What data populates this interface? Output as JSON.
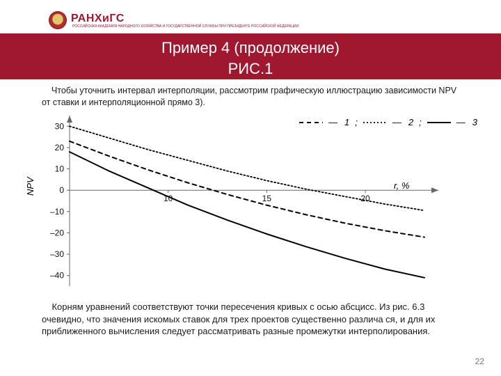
{
  "logo": {
    "main": "РАНХиГС",
    "subtitle": "РОССИЙСКАЯ АКАДЕМИЯ НАРОДНОГО ХОЗЯЙСТВА И ГОСУДАРСТВЕННОЙ СЛУЖБЫ ПРИ ПРЕЗИДЕНТЕ РОССИЙСКОЙ ФЕДЕРАЦИИ"
  },
  "title_line1": "Пример 4 (продолжение)",
  "title_line2": "РИС.1",
  "intro_text": "Чтобы уточнить интервал интерполяции, рассмотрим графическую иллюстрацию зависимости NPV от ставки и интерполяционной прямо            3).",
  "outro_text": "Корням уравнений соответствуют точки пересечения кривых с осью абсцисс. Из рис. 6.3 очевидно, что значения искомых ставок для трех проектов существенно различа    ся, и для их приближенного вычисления следует рассматривать разные промежутки интерполирования.",
  "page_number": "22",
  "chart": {
    "type": "line",
    "x_label": "r, %",
    "y_label": "NPV",
    "x_domain": [
      5,
      23
    ],
    "y_domain": [
      -45,
      35
    ],
    "y_ticks": [
      -40,
      -30,
      -20,
      -10,
      0,
      10,
      20,
      30
    ],
    "x_ticks": [
      10,
      15,
      20
    ],
    "axis_color": "#666666",
    "axis_width": 1,
    "grid": false,
    "background": "#ffffff",
    "label_fontsize": 13,
    "tick_fontsize": 12,
    "legend_items": [
      {
        "id": "1",
        "dash": "6,5",
        "width": 2,
        "color": "#000000"
      },
      {
        "id": "2",
        "dash": "2,3",
        "width": 1.8,
        "color": "#000000"
      },
      {
        "id": "3",
        "dash": "0",
        "width": 2,
        "color": "#000000"
      }
    ],
    "series": [
      {
        "id": "1",
        "color": "#000000",
        "width": 2,
        "dash": "6,5",
        "points": [
          {
            "x": 5,
            "y": 23
          },
          {
            "x": 7,
            "y": 16
          },
          {
            "x": 9,
            "y": 9.5
          },
          {
            "x": 11,
            "y": 3.5
          },
          {
            "x": 13,
            "y": -2
          },
          {
            "x": 15,
            "y": -7
          },
          {
            "x": 17,
            "y": -11.5
          },
          {
            "x": 19,
            "y": -15.5
          },
          {
            "x": 21,
            "y": -19
          },
          {
            "x": 23,
            "y": -22
          }
        ]
      },
      {
        "id": "2",
        "color": "#000000",
        "width": 1.8,
        "dash": "2,3",
        "points": [
          {
            "x": 5,
            "y": 30
          },
          {
            "x": 7,
            "y": 24.5
          },
          {
            "x": 9,
            "y": 19
          },
          {
            "x": 11,
            "y": 14
          },
          {
            "x": 13,
            "y": 9
          },
          {
            "x": 15,
            "y": 4.5
          },
          {
            "x": 17,
            "y": 0.5
          },
          {
            "x": 19,
            "y": -3
          },
          {
            "x": 21,
            "y": -6.5
          },
          {
            "x": 23,
            "y": -9.5
          }
        ]
      },
      {
        "id": "3",
        "color": "#000000",
        "width": 2,
        "dash": "0",
        "points": [
          {
            "x": 5,
            "y": 18
          },
          {
            "x": 7,
            "y": 9
          },
          {
            "x": 9,
            "y": 1
          },
          {
            "x": 11,
            "y": -7
          },
          {
            "x": 13,
            "y": -14
          },
          {
            "x": 15,
            "y": -20.5
          },
          {
            "x": 17,
            "y": -26.5
          },
          {
            "x": 19,
            "y": -32
          },
          {
            "x": 21,
            "y": -37
          },
          {
            "x": 23,
            "y": -41
          }
        ]
      }
    ]
  },
  "colors": {
    "brand": "#a01830",
    "text": "#1a1a1a",
    "page_num": "#7a7a7a"
  }
}
